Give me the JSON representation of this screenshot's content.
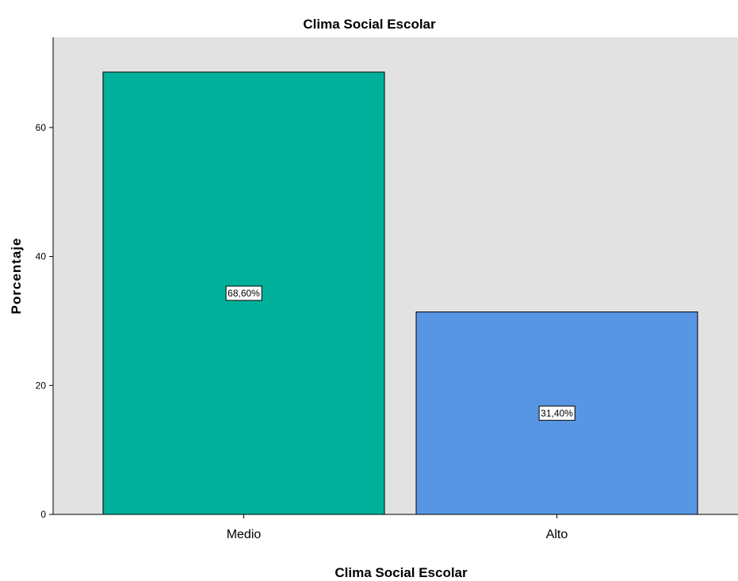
{
  "chart_data": {
    "type": "bar",
    "title": "Clima Social Escolar",
    "xlabel": "Clima Social Escolar",
    "ylabel": "Porcentaje",
    "categories": [
      "Medio",
      "Alto"
    ],
    "values": [
      68.6,
      31.4
    ],
    "data_labels": [
      "68,60%",
      "31,40%"
    ],
    "bar_colors": [
      "#00b09b",
      "#5896e4"
    ],
    "plot_background": "#e2e2e2",
    "ylim": [
      0,
      74
    ],
    "yticks": [
      0,
      20,
      40,
      60
    ],
    "ytick_labels": [
      "0",
      "20",
      "40",
      "60"
    ],
    "grid": false,
    "legend": "none"
  }
}
